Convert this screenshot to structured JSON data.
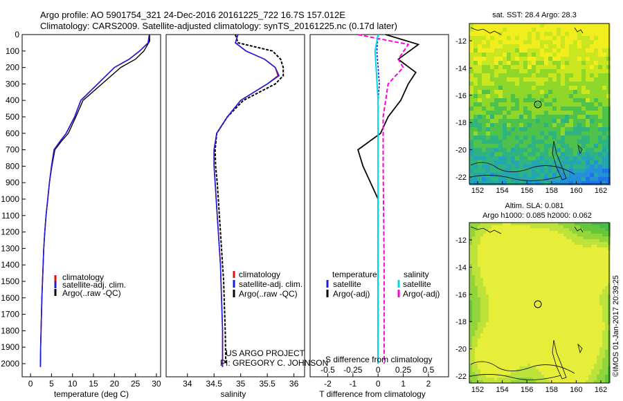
{
  "header": {
    "line1": "Argo profile: AO 5901754_321 24-Dec-2016 20161225_722 16.7S 157.012E",
    "line2": "Climatology: CARS2009. Satellite-adjusted climatology: synTS_20161225.nc (0.17d later)"
  },
  "colors": {
    "climatology": "#e01010",
    "satellite": "#1a1ae0",
    "argo": "#000000",
    "salinity_satellite": "#00d8e8",
    "salinity_argo_adj": "#ff00e0"
  },
  "chart_data": [
    {
      "type": "line",
      "panel": "temperature",
      "xlabel": "temperature (deg C)",
      "xlim": [
        -2,
        31
      ],
      "xticks": [
        0,
        5,
        10,
        15,
        20,
        25,
        30
      ],
      "ylim": [
        2080,
        0
      ],
      "yticks": [
        0,
        100,
        200,
        300,
        400,
        500,
        600,
        700,
        800,
        900,
        1000,
        1100,
        1200,
        1300,
        1400,
        1500,
        1600,
        1700,
        1800,
        1900,
        2000
      ],
      "legend": [
        "climatology",
        "satellite-adj. clim.",
        "Argo(..raw -QC)"
      ],
      "series": [
        {
          "name": "climatology",
          "x": [
            28.3,
            28.0,
            26.0,
            23.5,
            20.0,
            16.0,
            12.0,
            10.5,
            8.5,
            7.0,
            5.6,
            5.0,
            4.5,
            4.1,
            3.7,
            3.4,
            3.15,
            3.0,
            2.85,
            2.7,
            2.6,
            2.5,
            2.4,
            2.35
          ],
          "y": [
            0,
            50,
            100,
            150,
            200,
            300,
            400,
            500,
            600,
            650,
            700,
            800,
            900,
            1000,
            1100,
            1200,
            1300,
            1400,
            1500,
            1600,
            1700,
            1800,
            1900,
            2020
          ]
        },
        {
          "name": "satellite-adj. clim.",
          "x": [
            28.3,
            28.1,
            26.0,
            23.5,
            20.0,
            16.0,
            12.0,
            10.5,
            8.5,
            7.0,
            5.6,
            5.0,
            4.5,
            4.1,
            3.7,
            3.4,
            3.15,
            3.0,
            2.85,
            2.7,
            2.6,
            2.5,
            2.4,
            2.35
          ],
          "y": [
            0,
            50,
            100,
            150,
            200,
            300,
            400,
            500,
            600,
            650,
            700,
            800,
            900,
            1000,
            1100,
            1200,
            1300,
            1400,
            1500,
            1600,
            1700,
            1800,
            1900,
            2020
          ]
        },
        {
          "name": "Argo(..raw -QC)",
          "x": [
            28.4,
            28.4,
            27.0,
            25.0,
            21.5,
            17.0,
            12.5,
            10.8,
            9.0,
            7.3,
            5.8,
            5.1,
            4.5,
            4.1,
            3.7,
            3.4,
            3.15,
            3.0,
            2.85,
            2.7,
            2.6,
            2.5,
            2.4,
            2.35
          ],
          "y": [
            0,
            40,
            100,
            150,
            200,
            300,
            400,
            500,
            600,
            650,
            700,
            800,
            900,
            1000,
            1100,
            1200,
            1300,
            1400,
            1500,
            1600,
            1700,
            1800,
            1900,
            2000
          ]
        }
      ]
    },
    {
      "type": "line",
      "panel": "salinity",
      "xlabel": "salinity",
      "xlim": [
        33.6,
        36.2
      ],
      "xticks": [
        34,
        34.5,
        35,
        35.5,
        36
      ],
      "ylim": [
        2080,
        0
      ],
      "legend": [
        "climatology",
        "satellite-adj. clim.",
        "Argo(..raw -QC)"
      ],
      "series": [
        {
          "name": "climatology",
          "x": [
            34.95,
            34.9,
            35.1,
            35.45,
            35.65,
            35.7,
            35.5,
            35.0,
            34.75,
            34.55,
            34.5,
            34.5,
            34.52,
            34.54,
            34.56,
            34.58,
            34.6,
            34.62,
            34.63,
            34.64,
            34.65,
            34.66,
            34.66
          ],
          "y": [
            0,
            50,
            100,
            150,
            200,
            250,
            300,
            400,
            500,
            600,
            700,
            800,
            900,
            1000,
            1100,
            1200,
            1300,
            1400,
            1500,
            1600,
            1700,
            1800,
            2020
          ]
        },
        {
          "name": "satellite-adj. clim.",
          "x": [
            34.95,
            34.9,
            35.1,
            35.45,
            35.65,
            35.72,
            35.5,
            35.0,
            34.75,
            34.55,
            34.5,
            34.5,
            34.52,
            34.54,
            34.56,
            34.58,
            34.6,
            34.62,
            34.63,
            34.64,
            34.65,
            34.66,
            34.66
          ],
          "y": [
            0,
            50,
            100,
            150,
            200,
            250,
            300,
            400,
            500,
            600,
            700,
            800,
            900,
            1000,
            1100,
            1200,
            1300,
            1400,
            1500,
            1600,
            1700,
            1800,
            2020
          ]
        },
        {
          "name": "Argo(..raw -QC)",
          "x": [
            34.9,
            34.95,
            35.6,
            35.75,
            35.8,
            35.8,
            35.65,
            35.05,
            34.75,
            34.55,
            34.52,
            34.53,
            34.56,
            34.58,
            34.6,
            34.62,
            34.64,
            34.66,
            34.68,
            34.69,
            34.7,
            34.71,
            34.72
          ],
          "y": [
            0,
            50,
            100,
            150,
            200,
            250,
            300,
            400,
            500,
            600,
            700,
            800,
            900,
            1000,
            1100,
            1200,
            1300,
            1400,
            1500,
            1600,
            1700,
            1800,
            2000
          ]
        }
      ]
    },
    {
      "type": "line",
      "panel": "difference",
      "xlabel": "T difference from climatology",
      "xlabel2": "S difference from climatology",
      "xlim": [
        -2.7,
        2.8
      ],
      "xticks": [
        -2,
        -1,
        0,
        1,
        2
      ],
      "xticks_s": [
        "-0.5",
        "-0.25",
        "0",
        "0.25",
        "0.5"
      ],
      "ylim": [
        2080,
        0
      ],
      "legend_left_title": "temperature",
      "legend_right_title": "salinity",
      "legend": [
        "satellite",
        "Argo(-adj)",
        "satellite",
        "Argo(-adj)"
      ],
      "series": [
        {
          "name": "T satellite",
          "x": [
            0.0,
            -0.05,
            0.0,
            0.05,
            0.0,
            0.0,
            0.0,
            0.0,
            0.0,
            0.0,
            0.0
          ],
          "y": [
            0,
            100,
            200,
            300,
            400,
            600,
            800,
            1000,
            1400,
            1800,
            2000
          ]
        },
        {
          "name": "T Argo(-adj)",
          "x": [
            0.3,
            1.6,
            0.8,
            1.5,
            1.2,
            0.9,
            0.4,
            0.1,
            -0.8,
            -0.6,
            0.0,
            0.0,
            0.0,
            0.0
          ],
          "y": [
            0,
            60,
            150,
            230,
            300,
            400,
            500,
            600,
            700,
            800,
            1000,
            1400,
            1800,
            2000
          ]
        },
        {
          "name": "S satellite",
          "x": [
            0.0,
            -0.03,
            -0.02,
            0.0,
            0.0,
            0.0,
            0.0,
            0.0
          ],
          "y": [
            0,
            100,
            200,
            400,
            600,
            1000,
            1500,
            2000
          ]
        },
        {
          "name": "S Argo(-adj)",
          "x": [
            -0.2,
            0.3,
            0.2,
            0.25,
            0.1,
            0.05,
            0.05,
            0.06,
            0.06
          ],
          "y": [
            0,
            60,
            150,
            200,
            300,
            500,
            800,
            1400,
            2000
          ]
        }
      ]
    },
    {
      "type": "heatmap",
      "panel": "sst-map",
      "title": "sat. SST: 28.4  Argo: 28.3",
      "xticks": [
        152,
        154,
        156,
        158,
        160,
        162
      ],
      "yticks": [
        -12,
        -14,
        -16,
        -18,
        -20,
        -22
      ]
    },
    {
      "type": "heatmap",
      "panel": "sla-map",
      "title": "Altim. SLA: 0.081",
      "subtitle": "Argo h1000: 0.085 h2000: 0.062",
      "xticks": [
        152,
        154,
        156,
        158,
        160,
        162
      ],
      "yticks": [
        -12,
        -14,
        -16,
        -18,
        -20,
        -22
      ]
    }
  ],
  "notes": {
    "project_line1": "US ARGO PROJECT",
    "project_line2": "PI: GREGORY C. JOHNSON",
    "footer_right": "©IMOS 01-Jan-2017 20:39:25"
  }
}
